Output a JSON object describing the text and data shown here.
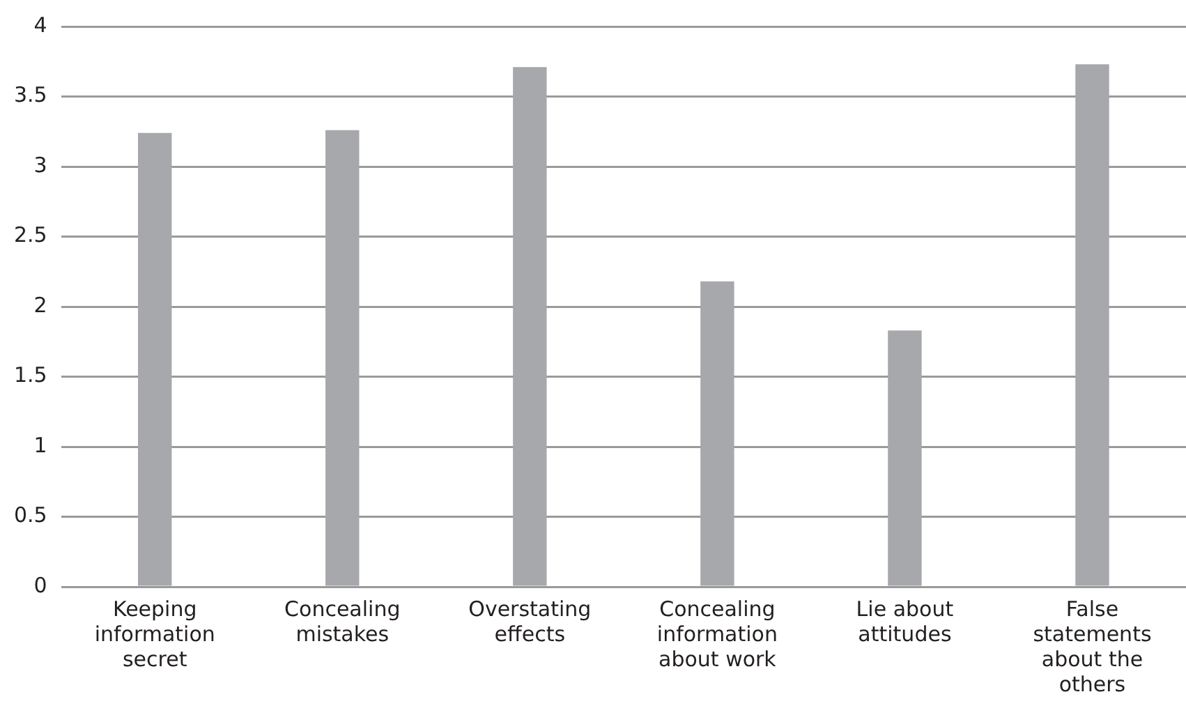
{
  "chart_data": {
    "type": "bar",
    "categories": [
      "Keeping information secret",
      "Concealing mistakes",
      "Overstating effects",
      "Concealing information about work",
      "Lie about attitudes",
      "False statements about the others"
    ],
    "values": [
      3.24,
      3.26,
      3.71,
      2.18,
      1.83,
      3.73
    ],
    "color": "#a7a8ab",
    "ylim": [
      0,
      4
    ],
    "yticks": [
      0,
      0.5,
      1,
      1.5,
      2,
      2.5,
      3,
      3.5,
      4
    ],
    "grid": "y",
    "legend": false
  }
}
